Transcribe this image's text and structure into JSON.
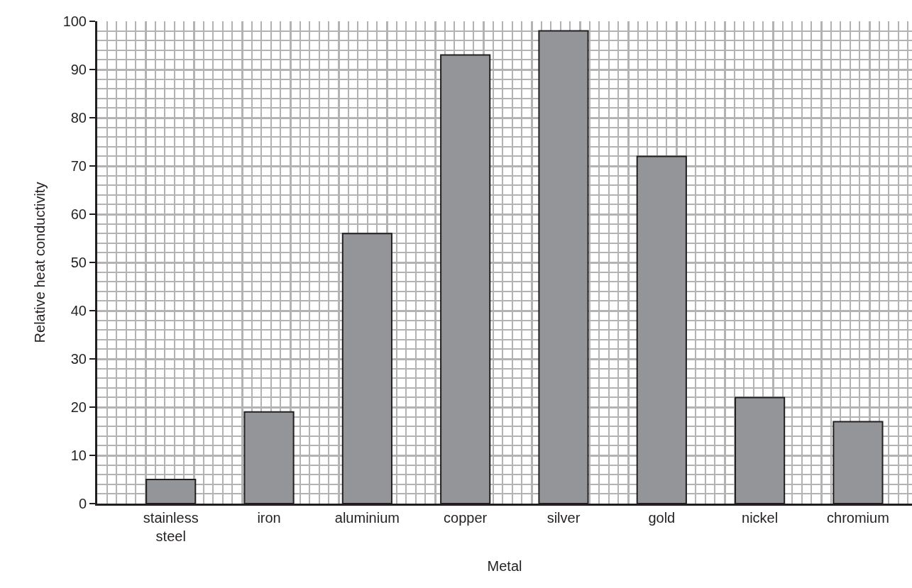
{
  "chart_data": {
    "type": "bar",
    "xlabel": "Metal",
    "ylabel": "Relative heat conductivity",
    "categories": [
      "stainless steel",
      "iron",
      "aluminium",
      "copper",
      "silver",
      "gold",
      "nickel",
      "chromium"
    ],
    "values": [
      5,
      19,
      56,
      93,
      98,
      72,
      22,
      17
    ],
    "color": "#939598",
    "ylim": [
      0,
      100
    ],
    "yticks": [
      0,
      10,
      20,
      30,
      40,
      50,
      60,
      70,
      80,
      90,
      100
    ],
    "grid": true
  }
}
